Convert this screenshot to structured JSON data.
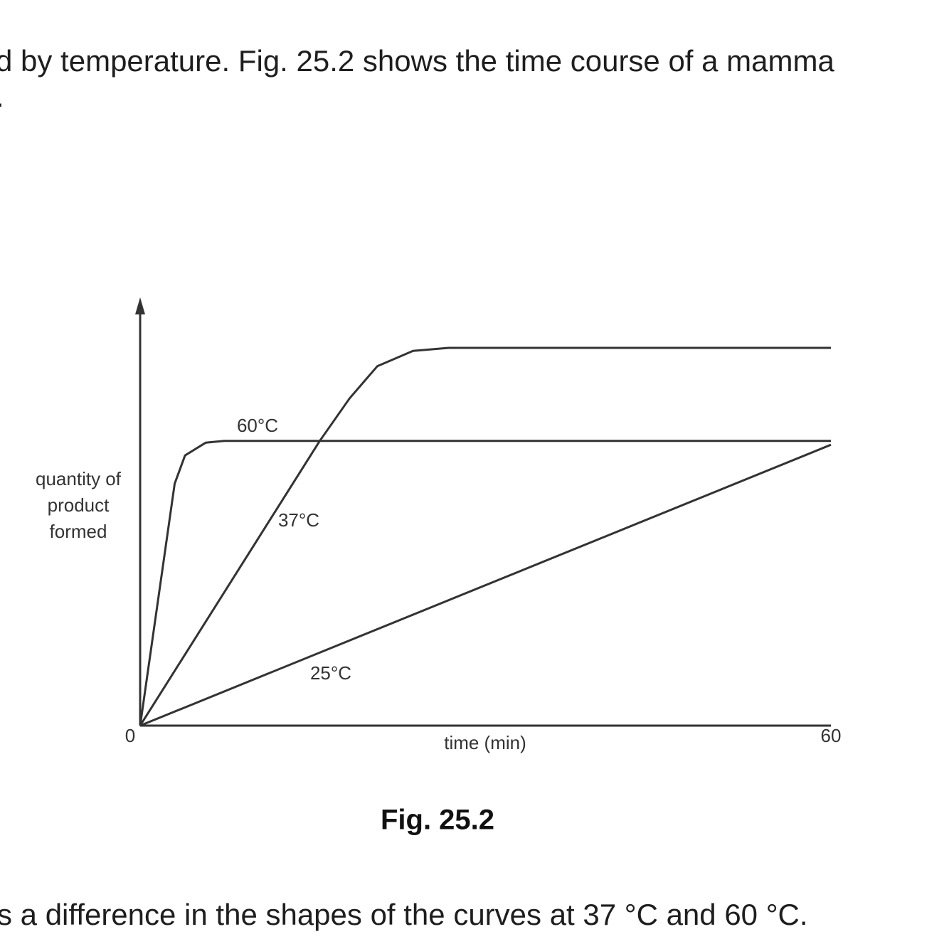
{
  "document": {
    "text_lines": [
      "d by temperature. Fig. 25.2 shows the time course of a mamma",
      ".",
      "s a difference in the shapes of the curves at 37 °C and 60 °C."
    ]
  },
  "chart_data": {
    "type": "line",
    "caption": "Fig. 25.2",
    "xlabel": "time (min)",
    "ylabel": "quantity of product formed",
    "xlim": [
      0,
      60
    ],
    "xticks": [
      0,
      60
    ],
    "ylim": [
      0,
      100
    ],
    "series": [
      {
        "name": "60°C",
        "color": "#333333",
        "x": [
          0,
          3.0,
          3.9,
          5.7,
          7.3,
          60
        ],
        "values": [
          0,
          56.7,
          63.3,
          66.3,
          66.7,
          66.7
        ]
      },
      {
        "name": "37°C",
        "color": "#333333",
        "x": [
          0,
          15.6,
          18.2,
          20.6,
          23.7,
          26.8,
          60
        ],
        "values": [
          0,
          66.7,
          76.7,
          84.2,
          87.8,
          88.5,
          88.5
        ]
      },
      {
        "name": "25°C",
        "color": "#333333",
        "x": [
          0,
          60
        ],
        "values": [
          0,
          65.8
        ]
      }
    ]
  }
}
